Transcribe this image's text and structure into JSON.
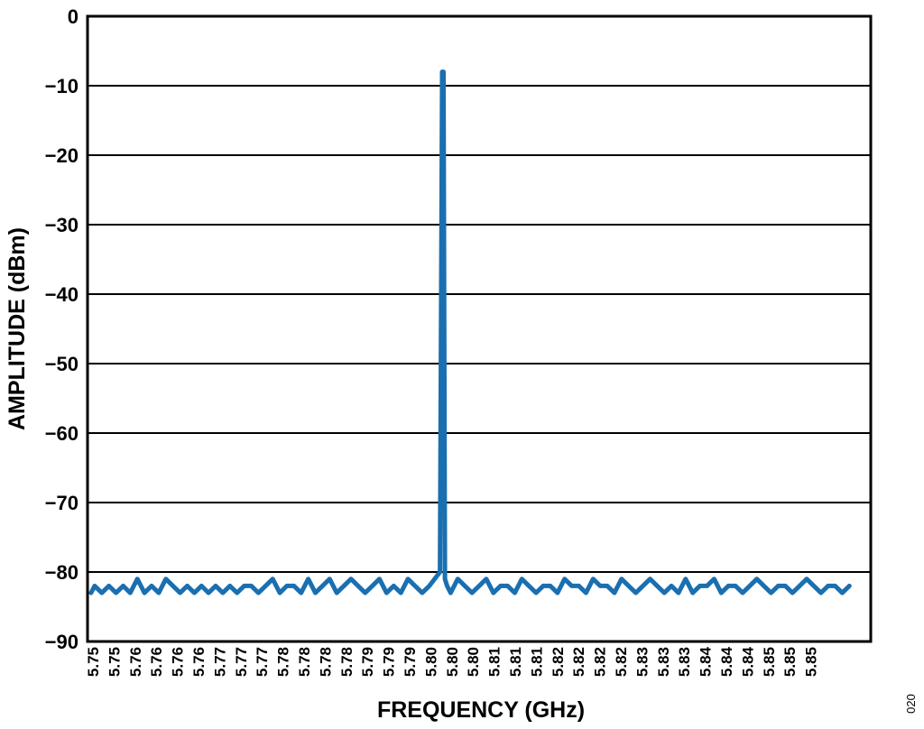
{
  "figure_id": "020",
  "chart_data": {
    "type": "line",
    "title": "",
    "xlabel": "FREQUENCY (GHz)",
    "ylabel": "AMPLITUDE (dBm)",
    "xlim": [
      5.75,
      5.86
    ],
    "ylim": [
      -90,
      0
    ],
    "y_ticks": [
      0,
      -10,
      -20,
      -30,
      -40,
      -50,
      -60,
      -70,
      -80,
      -90
    ],
    "y_tick_labels": [
      "0",
      "−10",
      "−20",
      "−30",
      "−40",
      "−50",
      "−60",
      "−70",
      "−80",
      "−90"
    ],
    "x_tick_labels": [
      "5.75",
      "5.75",
      "5.76",
      "5.76",
      "5.76",
      "5.76",
      "5.77",
      "5.77",
      "5.77",
      "5.78",
      "5.78",
      "5.78",
      "5.78",
      "5.79",
      "5.79",
      "5.79",
      "5.80",
      "5.80",
      "5.80",
      "5.81",
      "5.81",
      "5.81",
      "5.82",
      "5.82",
      "5.82",
      "5.82",
      "5.83",
      "5.83",
      "5.83",
      "5.84",
      "5.84",
      "5.84",
      "5.85",
      "5.85",
      "5.85"
    ],
    "grid": "horizontal",
    "line_color": "#1a6fb0",
    "series": [
      {
        "noise_floor_dbm": -82,
        "peak": {
          "x": 5.8,
          "y": -8
        },
        "x": [
          5.7505,
          5.751,
          5.752,
          5.753,
          5.754,
          5.755,
          5.756,
          5.757,
          5.758,
          5.759,
          5.76,
          5.761,
          5.762,
          5.763,
          5.764,
          5.765,
          5.766,
          5.767,
          5.768,
          5.769,
          5.77,
          5.771,
          5.772,
          5.773,
          5.774,
          5.775,
          5.776,
          5.777,
          5.778,
          5.779,
          5.78,
          5.781,
          5.782,
          5.783,
          5.784,
          5.785,
          5.786,
          5.787,
          5.788,
          5.789,
          5.79,
          5.791,
          5.792,
          5.793,
          5.794,
          5.795,
          5.796,
          5.797,
          5.798,
          5.7995,
          5.7998,
          5.8,
          5.8002,
          5.8005,
          5.801,
          5.802,
          5.803,
          5.804,
          5.805,
          5.806,
          5.807,
          5.808,
          5.809,
          5.81,
          5.811,
          5.812,
          5.813,
          5.814,
          5.815,
          5.816,
          5.817,
          5.818,
          5.819,
          5.82,
          5.821,
          5.822,
          5.823,
          5.824,
          5.825,
          5.826,
          5.827,
          5.828,
          5.829,
          5.83,
          5.831,
          5.832,
          5.833,
          5.834,
          5.835,
          5.836,
          5.837,
          5.838,
          5.839,
          5.84,
          5.841,
          5.842,
          5.843,
          5.844,
          5.845,
          5.846,
          5.847,
          5.848,
          5.849,
          5.85,
          5.851,
          5.852,
          5.853,
          5.854,
          5.855,
          5.856,
          5.857
        ],
        "y": [
          -83,
          -82,
          -83,
          -82,
          -83,
          -82,
          -83,
          -81,
          -83,
          -82,
          -83,
          -81,
          -82,
          -83,
          -82,
          -83,
          -82,
          -83,
          -82,
          -83,
          -82,
          -83,
          -82,
          -82,
          -83,
          -82,
          -81,
          -83,
          -82,
          -82,
          -83,
          -81,
          -83,
          -82,
          -81,
          -83,
          -82,
          -81,
          -82,
          -83,
          -82,
          -81,
          -83,
          -82,
          -83,
          -81,
          -82,
          -83,
          -82,
          -80,
          -8,
          -8,
          -81,
          -82,
          -83,
          -81,
          -82,
          -83,
          -82,
          -81,
          -83,
          -82,
          -82,
          -83,
          -81,
          -82,
          -83,
          -82,
          -82,
          -83,
          -81,
          -82,
          -82,
          -83,
          -81,
          -82,
          -82,
          -83,
          -81,
          -82,
          -83,
          -82,
          -81,
          -82,
          -83,
          -82,
          -83,
          -81,
          -83,
          -82,
          -82,
          -81,
          -83,
          -82,
          -82,
          -83,
          -82,
          -81,
          -82,
          -83,
          -82,
          -82,
          -83,
          -82,
          -81,
          -82,
          -83,
          -82,
          -82,
          -83,
          -82
        ]
      }
    ]
  }
}
